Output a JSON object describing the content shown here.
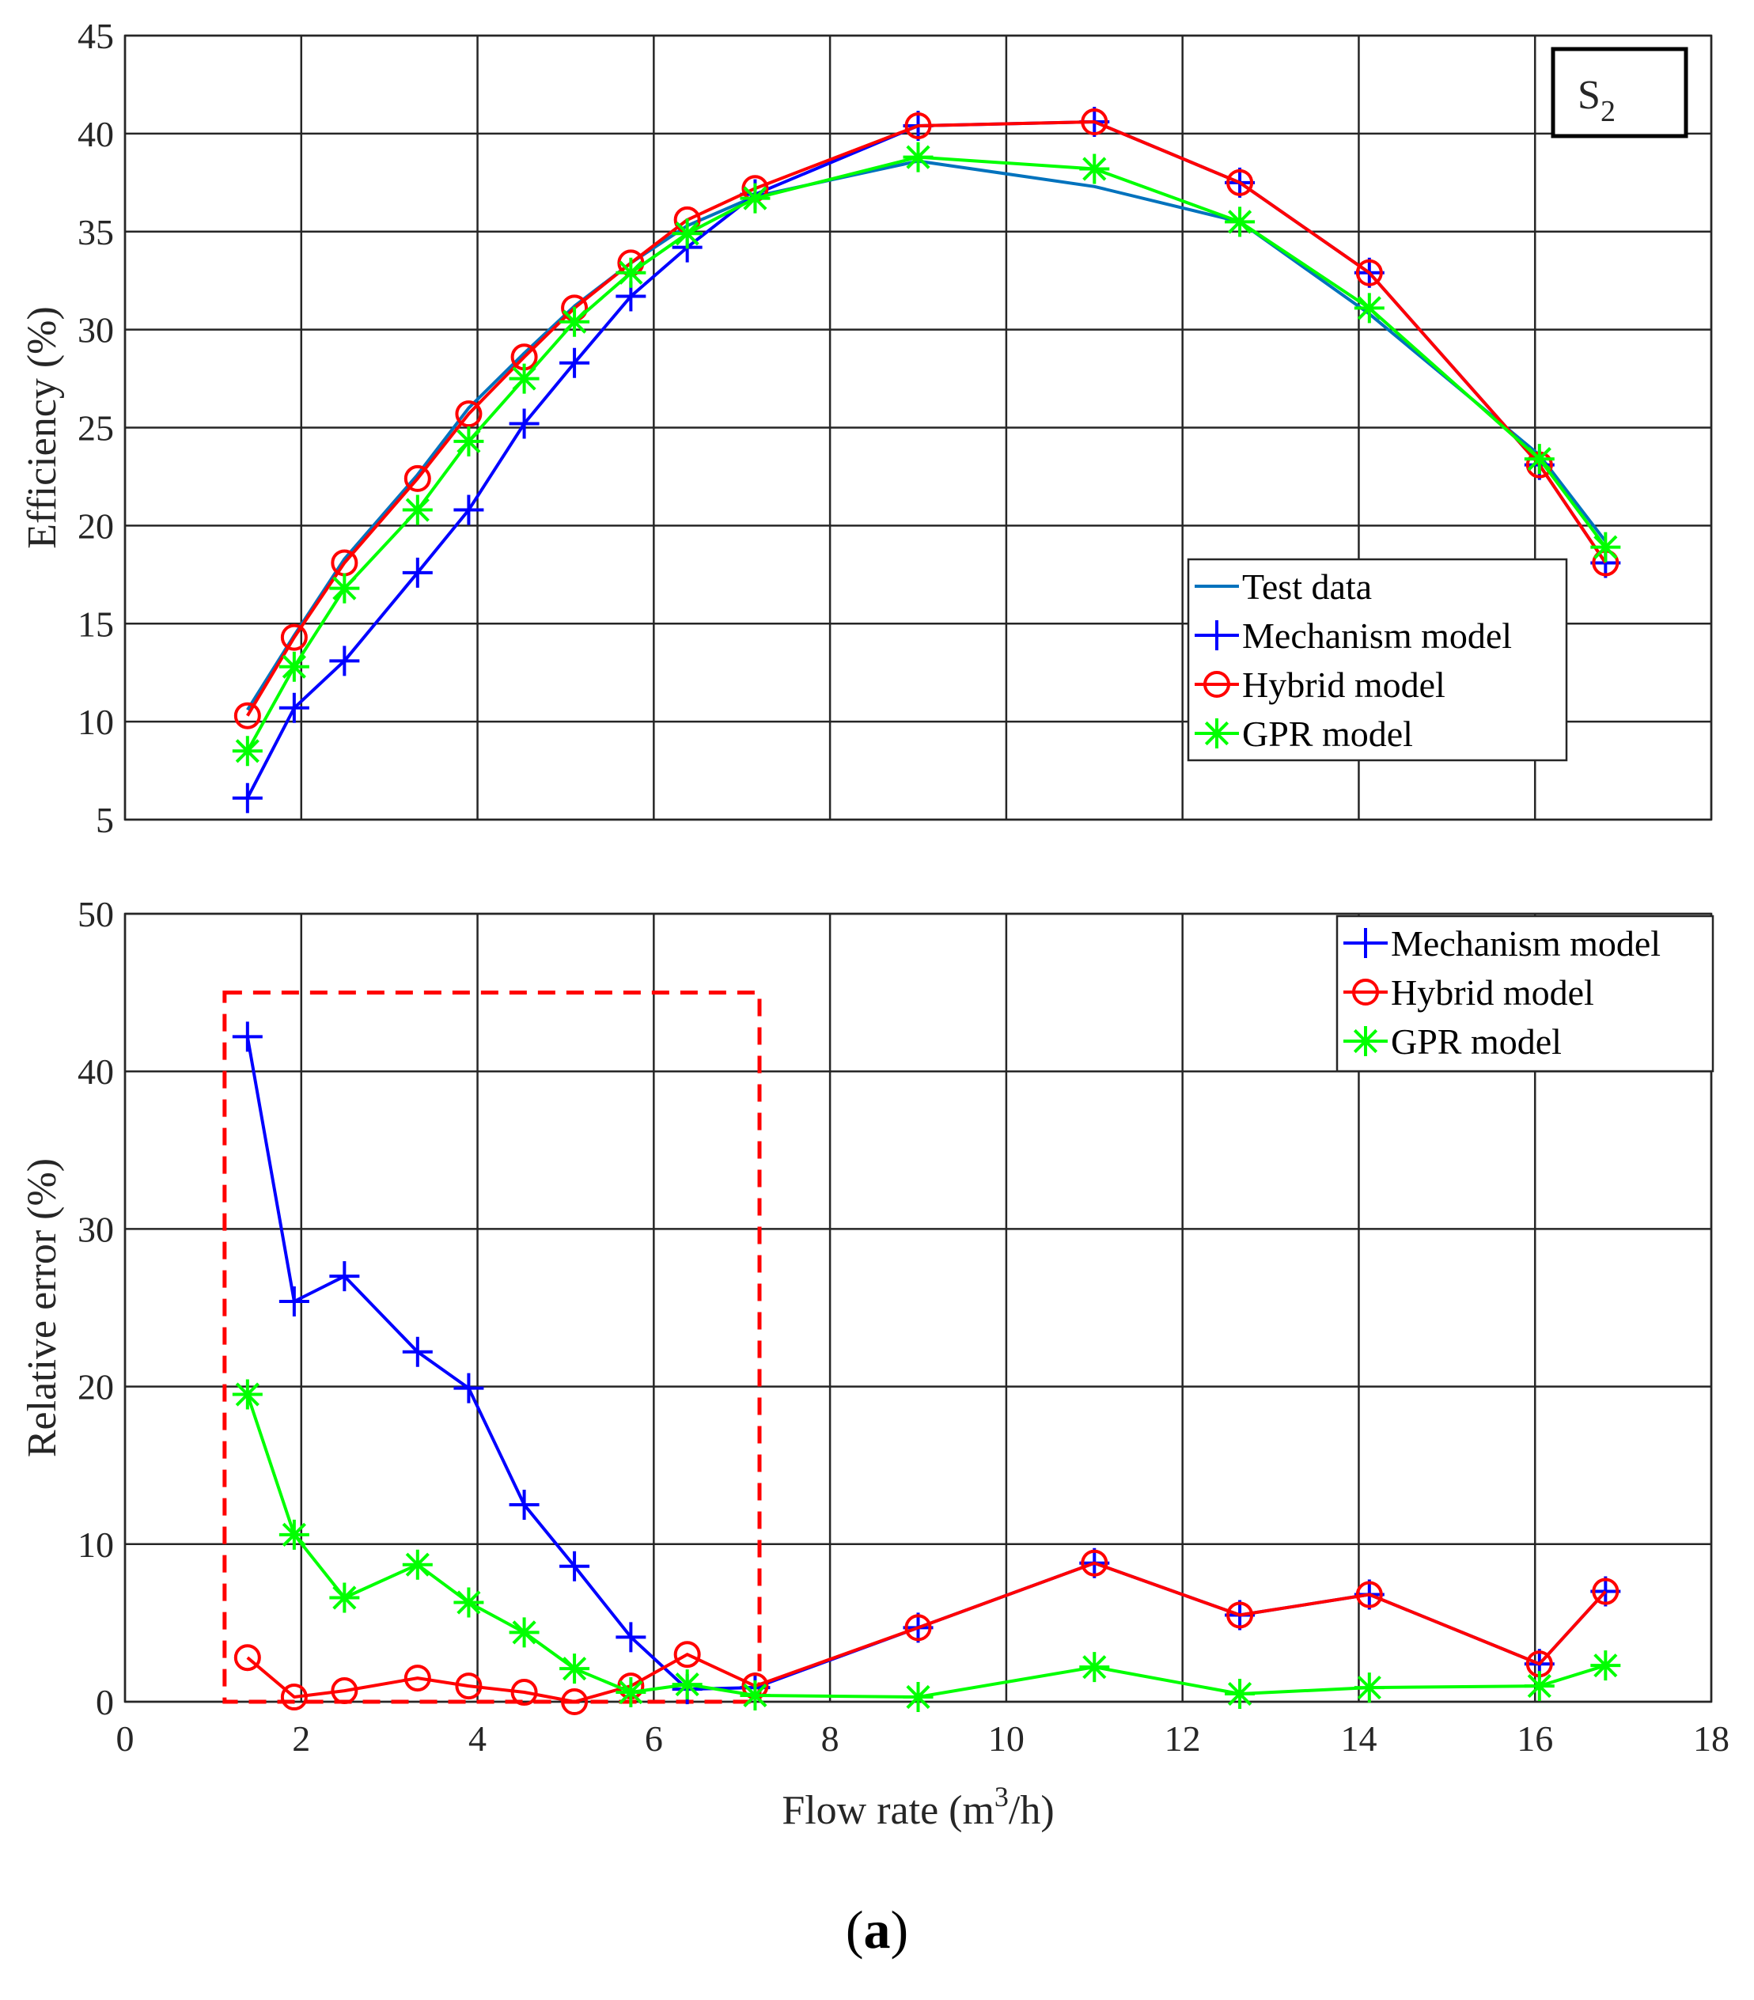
{
  "caption": {
    "open": "(",
    "letter": "a",
    "close": ")"
  },
  "colors": {
    "test": "#0072bd",
    "mech": "#0000ff",
    "hybrid": "#ff0000",
    "gpr": "#00ff00",
    "box": "#ff0000"
  },
  "chart_data": [
    {
      "type": "line",
      "annotation": {
        "base": "S",
        "sub": "2"
      },
      "ylabel": "Efficiency (%)",
      "xlabel": "",
      "xlim": [
        0,
        18
      ],
      "ylim": [
        5,
        45
      ],
      "xticks": [
        0,
        2,
        4,
        6,
        8,
        10,
        12,
        14,
        16,
        18
      ],
      "yticks": [
        5,
        10,
        15,
        20,
        25,
        30,
        35,
        40,
        45
      ],
      "show_x_tick_labels": false,
      "legend_position": "bottom-right",
      "series": [
        {
          "name": "Test data",
          "color": "#0072bd",
          "marker": "none",
          "x": [
            1.39,
            1.92,
            2.49,
            3.32,
            3.9,
            4.53,
            5.1,
            5.74,
            6.38,
            7.15,
            9.0,
            11.0,
            12.65,
            14.12,
            16.05,
            16.8
          ],
          "y": [
            10.6,
            14.4,
            18.3,
            22.6,
            26.0,
            28.8,
            31.2,
            33.4,
            35.3,
            36.8,
            38.6,
            37.3,
            35.5,
            30.8,
            23.6,
            19.2
          ]
        },
        {
          "name": "Mechanism model",
          "color": "#0000ff",
          "marker": "plus",
          "x": [
            1.39,
            1.92,
            2.49,
            3.32,
            3.9,
            4.53,
            5.1,
            5.74,
            6.38,
            7.15,
            9.0,
            11.0,
            12.65,
            14.12,
            16.05,
            16.8
          ],
          "y": [
            6.1,
            10.7,
            13.1,
            17.6,
            20.8,
            25.2,
            28.3,
            31.7,
            34.2,
            36.9,
            40.4,
            40.6,
            37.5,
            32.9,
            23.1,
            18.1
          ]
        },
        {
          "name": "Hybrid model",
          "color": "#ff0000",
          "marker": "circle",
          "x": [
            1.39,
            1.92,
            2.49,
            3.32,
            3.9,
            4.53,
            5.1,
            5.74,
            6.38,
            7.15,
            9.0,
            11.0,
            12.65,
            14.12,
            16.05,
            16.8
          ],
          "y": [
            10.3,
            14.3,
            18.1,
            22.4,
            25.7,
            28.6,
            31.1,
            33.4,
            35.6,
            37.2,
            40.4,
            40.6,
            37.5,
            32.9,
            23.1,
            18.1
          ]
        },
        {
          "name": "GPR model",
          "color": "#00ff00",
          "marker": "asterisk",
          "x": [
            1.39,
            1.92,
            2.49,
            3.32,
            3.9,
            4.53,
            5.1,
            5.74,
            6.38,
            7.15,
            9.0,
            11.0,
            12.65,
            14.12,
            16.05,
            16.8
          ],
          "y": [
            8.5,
            12.8,
            16.8,
            20.8,
            24.3,
            27.5,
            30.4,
            32.9,
            34.9,
            36.7,
            38.8,
            38.2,
            35.5,
            31.1,
            23.4,
            18.9
          ]
        }
      ]
    },
    {
      "type": "line",
      "ylabel": "Relative error (%)",
      "xlabel": "Flow rate (m3/h)",
      "xlabel_parts": {
        "pre": "Flow rate (m",
        "sup": "3",
        "post": "/h)"
      },
      "xlim": [
        0,
        18
      ],
      "ylim": [
        0,
        50
      ],
      "xticks": [
        0,
        2,
        4,
        6,
        8,
        10,
        12,
        14,
        16,
        18
      ],
      "yticks": [
        0,
        10,
        20,
        30,
        40,
        50
      ],
      "show_x_tick_labels": true,
      "legend_position": "top-right",
      "highlight_box": {
        "x": [
          1.13,
          7.2
        ],
        "y": [
          0,
          45
        ]
      },
      "series": [
        {
          "name": "Mechanism model",
          "color": "#0000ff",
          "marker": "plus",
          "x": [
            1.39,
            1.92,
            2.49,
            3.32,
            3.9,
            4.53,
            5.1,
            5.74,
            6.38,
            7.15,
            9.0,
            11.0,
            12.65,
            14.12,
            16.05,
            16.8
          ],
          "y": [
            42.2,
            25.4,
            27.0,
            22.2,
            19.9,
            12.5,
            8.6,
            4.1,
            0.8,
            0.9,
            4.7,
            8.8,
            5.5,
            6.8,
            2.4,
            7.0
          ]
        },
        {
          "name": "Hybrid model",
          "color": "#ff0000",
          "marker": "circle",
          "x": [
            1.39,
            1.92,
            2.49,
            3.32,
            3.9,
            4.53,
            5.1,
            5.74,
            6.38,
            7.15,
            9.0,
            11.0,
            12.65,
            14.12,
            16.05,
            16.8
          ],
          "y": [
            2.8,
            0.3,
            0.7,
            1.5,
            1.0,
            0.6,
            0.0,
            1.0,
            3.0,
            1.0,
            4.7,
            8.8,
            5.5,
            6.8,
            2.4,
            7.0
          ]
        },
        {
          "name": "GPR model",
          "color": "#00ff00",
          "marker": "asterisk",
          "x": [
            1.39,
            1.92,
            2.49,
            3.32,
            3.9,
            4.53,
            5.1,
            5.74,
            6.38,
            7.15,
            9.0,
            11.0,
            12.65,
            14.12,
            16.05,
            16.8
          ],
          "y": [
            19.5,
            10.6,
            6.6,
            8.7,
            6.3,
            4.4,
            2.1,
            0.6,
            1.1,
            0.4,
            0.3,
            2.2,
            0.5,
            0.9,
            1.0,
            2.3
          ]
        }
      ]
    }
  ]
}
